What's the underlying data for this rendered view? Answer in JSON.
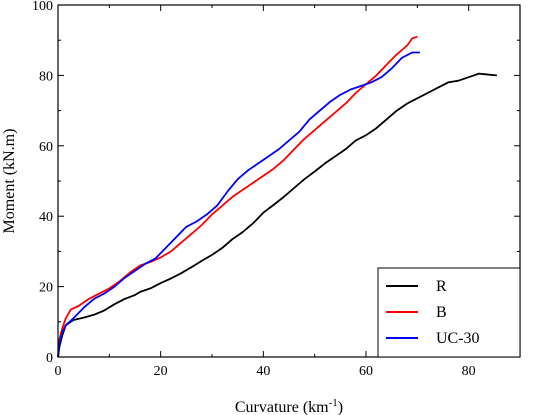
{
  "chart_data": {
    "type": "line",
    "title": "",
    "xlabel": "Curvature (km",
    "xlabel_sup": "-1",
    "xlabel_end": ")",
    "ylabel": "Moment (kN.m)",
    "xlim": [
      0,
      90
    ],
    "ylim": [
      0,
      100
    ],
    "x_ticks": [
      0,
      20,
      40,
      60,
      80
    ],
    "y_ticks": [
      0,
      20,
      40,
      60,
      80,
      100
    ],
    "grid": false,
    "legend_position": "bottom-right",
    "series": [
      {
        "name": "R",
        "color": "#000000",
        "points": [
          [
            0,
            0
          ],
          [
            0.3,
            3
          ],
          [
            0.8,
            6
          ],
          [
            1.5,
            9
          ],
          [
            3,
            10.5
          ],
          [
            5,
            11.2
          ],
          [
            7,
            12
          ],
          [
            9,
            13.2
          ],
          [
            11,
            15
          ],
          [
            13,
            16.5
          ],
          [
            15,
            17.6
          ],
          [
            16,
            18.5
          ],
          [
            18,
            19.5
          ],
          [
            20,
            21
          ],
          [
            22,
            22.3
          ],
          [
            24,
            23.8
          ],
          [
            26,
            25.5
          ],
          [
            28,
            27.3
          ],
          [
            30,
            29
          ],
          [
            32,
            31
          ],
          [
            34,
            33.5
          ],
          [
            36,
            35.5
          ],
          [
            38,
            38
          ],
          [
            40,
            41
          ],
          [
            42,
            43.2
          ],
          [
            44,
            45.5
          ],
          [
            46,
            48
          ],
          [
            48,
            50.5
          ],
          [
            50,
            52.7
          ],
          [
            52,
            55
          ],
          [
            54,
            57
          ],
          [
            56,
            59
          ],
          [
            58,
            61.5
          ],
          [
            60,
            63
          ],
          [
            62,
            65
          ],
          [
            64,
            67.5
          ],
          [
            66,
            70
          ],
          [
            68,
            72
          ],
          [
            70,
            73.5
          ],
          [
            72,
            75
          ],
          [
            74,
            76.5
          ],
          [
            76,
            78
          ],
          [
            78,
            78.5
          ],
          [
            80,
            79.5
          ],
          [
            82,
            80.5
          ],
          [
            84,
            80.2
          ],
          [
            85.5,
            80
          ]
        ]
      },
      {
        "name": "B",
        "color": "#ff0000",
        "points": [
          [
            0,
            0
          ],
          [
            0.3,
            5
          ],
          [
            0.8,
            8
          ],
          [
            1.5,
            11
          ],
          [
            2.5,
            13.5
          ],
          [
            4,
            14.5
          ],
          [
            6,
            16.5
          ],
          [
            8,
            18
          ],
          [
            10,
            19.5
          ],
          [
            12,
            21.5
          ],
          [
            14,
            24
          ],
          [
            16,
            26
          ],
          [
            18,
            27
          ],
          [
            20,
            28.3
          ],
          [
            22,
            30
          ],
          [
            24,
            32.5
          ],
          [
            26,
            35
          ],
          [
            28,
            37.5
          ],
          [
            30,
            40.5
          ],
          [
            32,
            43
          ],
          [
            34,
            45.5
          ],
          [
            36,
            47.5
          ],
          [
            38,
            49.5
          ],
          [
            40,
            51.5
          ],
          [
            42,
            53.5
          ],
          [
            44,
            56
          ],
          [
            46,
            59
          ],
          [
            48,
            62
          ],
          [
            50,
            64.5
          ],
          [
            52,
            67
          ],
          [
            54,
            69.5
          ],
          [
            56,
            72
          ],
          [
            58,
            75
          ],
          [
            60,
            77.5
          ],
          [
            62,
            80
          ],
          [
            64,
            83
          ],
          [
            66,
            86
          ],
          [
            68,
            88.5
          ],
          [
            69,
            90.5
          ],
          [
            70,
            91
          ]
        ]
      },
      {
        "name": "UC-30",
        "color": "#0000ff",
        "points": [
          [
            0,
            0
          ],
          [
            0.3,
            4
          ],
          [
            0.8,
            7
          ],
          [
            1.5,
            9
          ],
          [
            3,
            11
          ],
          [
            5,
            14
          ],
          [
            7,
            16.5
          ],
          [
            9,
            18
          ],
          [
            11,
            20
          ],
          [
            13,
            22.5
          ],
          [
            15,
            24.5
          ],
          [
            17,
            26.5
          ],
          [
            19,
            28
          ],
          [
            21,
            31
          ],
          [
            23,
            34
          ],
          [
            25,
            37
          ],
          [
            27,
            38.5
          ],
          [
            29,
            40.5
          ],
          [
            31,
            43
          ],
          [
            33,
            47
          ],
          [
            35,
            50.5
          ],
          [
            37,
            53
          ],
          [
            39,
            55
          ],
          [
            41,
            57
          ],
          [
            43,
            59
          ],
          [
            45,
            61.5
          ],
          [
            47,
            64
          ],
          [
            49,
            67.5
          ],
          [
            51,
            70
          ],
          [
            53,
            72.5
          ],
          [
            55,
            74.5
          ],
          [
            57,
            76
          ],
          [
            59,
            77
          ],
          [
            61,
            78
          ],
          [
            63,
            79.5
          ],
          [
            65,
            82
          ],
          [
            67,
            85
          ],
          [
            69,
            86.5
          ],
          [
            70.5,
            86.5
          ]
        ]
      }
    ]
  }
}
